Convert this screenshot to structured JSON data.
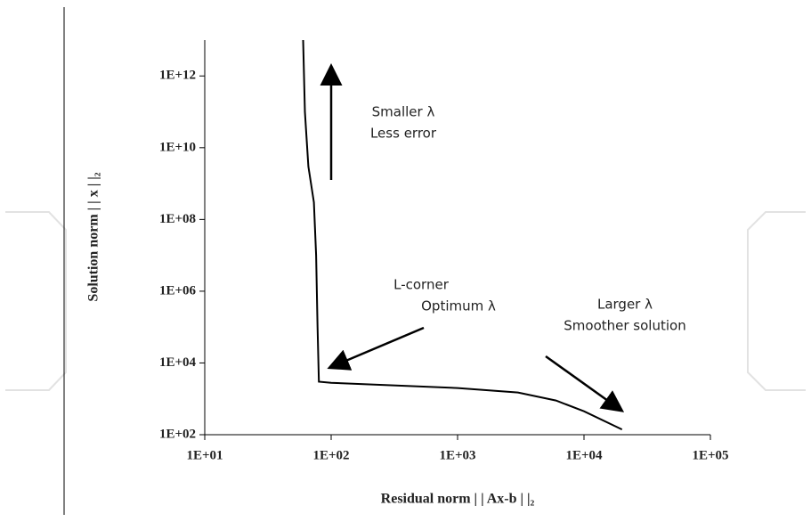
{
  "chart_data": {
    "type": "line",
    "x_label": "Residual norm | | Ax-b | |₂",
    "y_label": "Solution norm | | x | |₂",
    "x": [
      60,
      62,
      66,
      73,
      76,
      78,
      80,
      100,
      1000,
      3000,
      6000,
      10000,
      20000
    ],
    "values": [
      10000000000000.0,
      100000000000.0,
      3000000000.0,
      300000000.0,
      10000000.0,
      100000.0,
      3000,
      2800,
      2000,
      1500,
      900,
      450,
      140
    ],
    "color": "#000000",
    "x_log": true,
    "y_log": true,
    "grid": false,
    "xlim": [
      10,
      100000
    ],
    "ylim": [
      100,
      10000000000000
    ],
    "xticks": [
      {
        "value": 10,
        "label": "1E+01"
      },
      {
        "value": 100,
        "label": "1E+02"
      },
      {
        "value": 1000,
        "label": "1E+03"
      },
      {
        "value": 10000,
        "label": "1E+04"
      },
      {
        "value": 100000,
        "label": "1E+05"
      }
    ],
    "yticks": [
      {
        "value": 100,
        "label": "1E+02"
      },
      {
        "value": 10000,
        "label": "1E+04"
      },
      {
        "value": 1000000,
        "label": "1E+06"
      },
      {
        "value": 100000000,
        "label": "1E+08"
      },
      {
        "value": 10000000000,
        "label": "1E+10"
      },
      {
        "value": 1000000000000,
        "label": "1E+12"
      }
    ],
    "annotations": [
      "Smaller  λ",
      "Less error",
      "L-corner",
      "Optimum  λ",
      "Larger  λ",
      "Smoother solution"
    ]
  }
}
